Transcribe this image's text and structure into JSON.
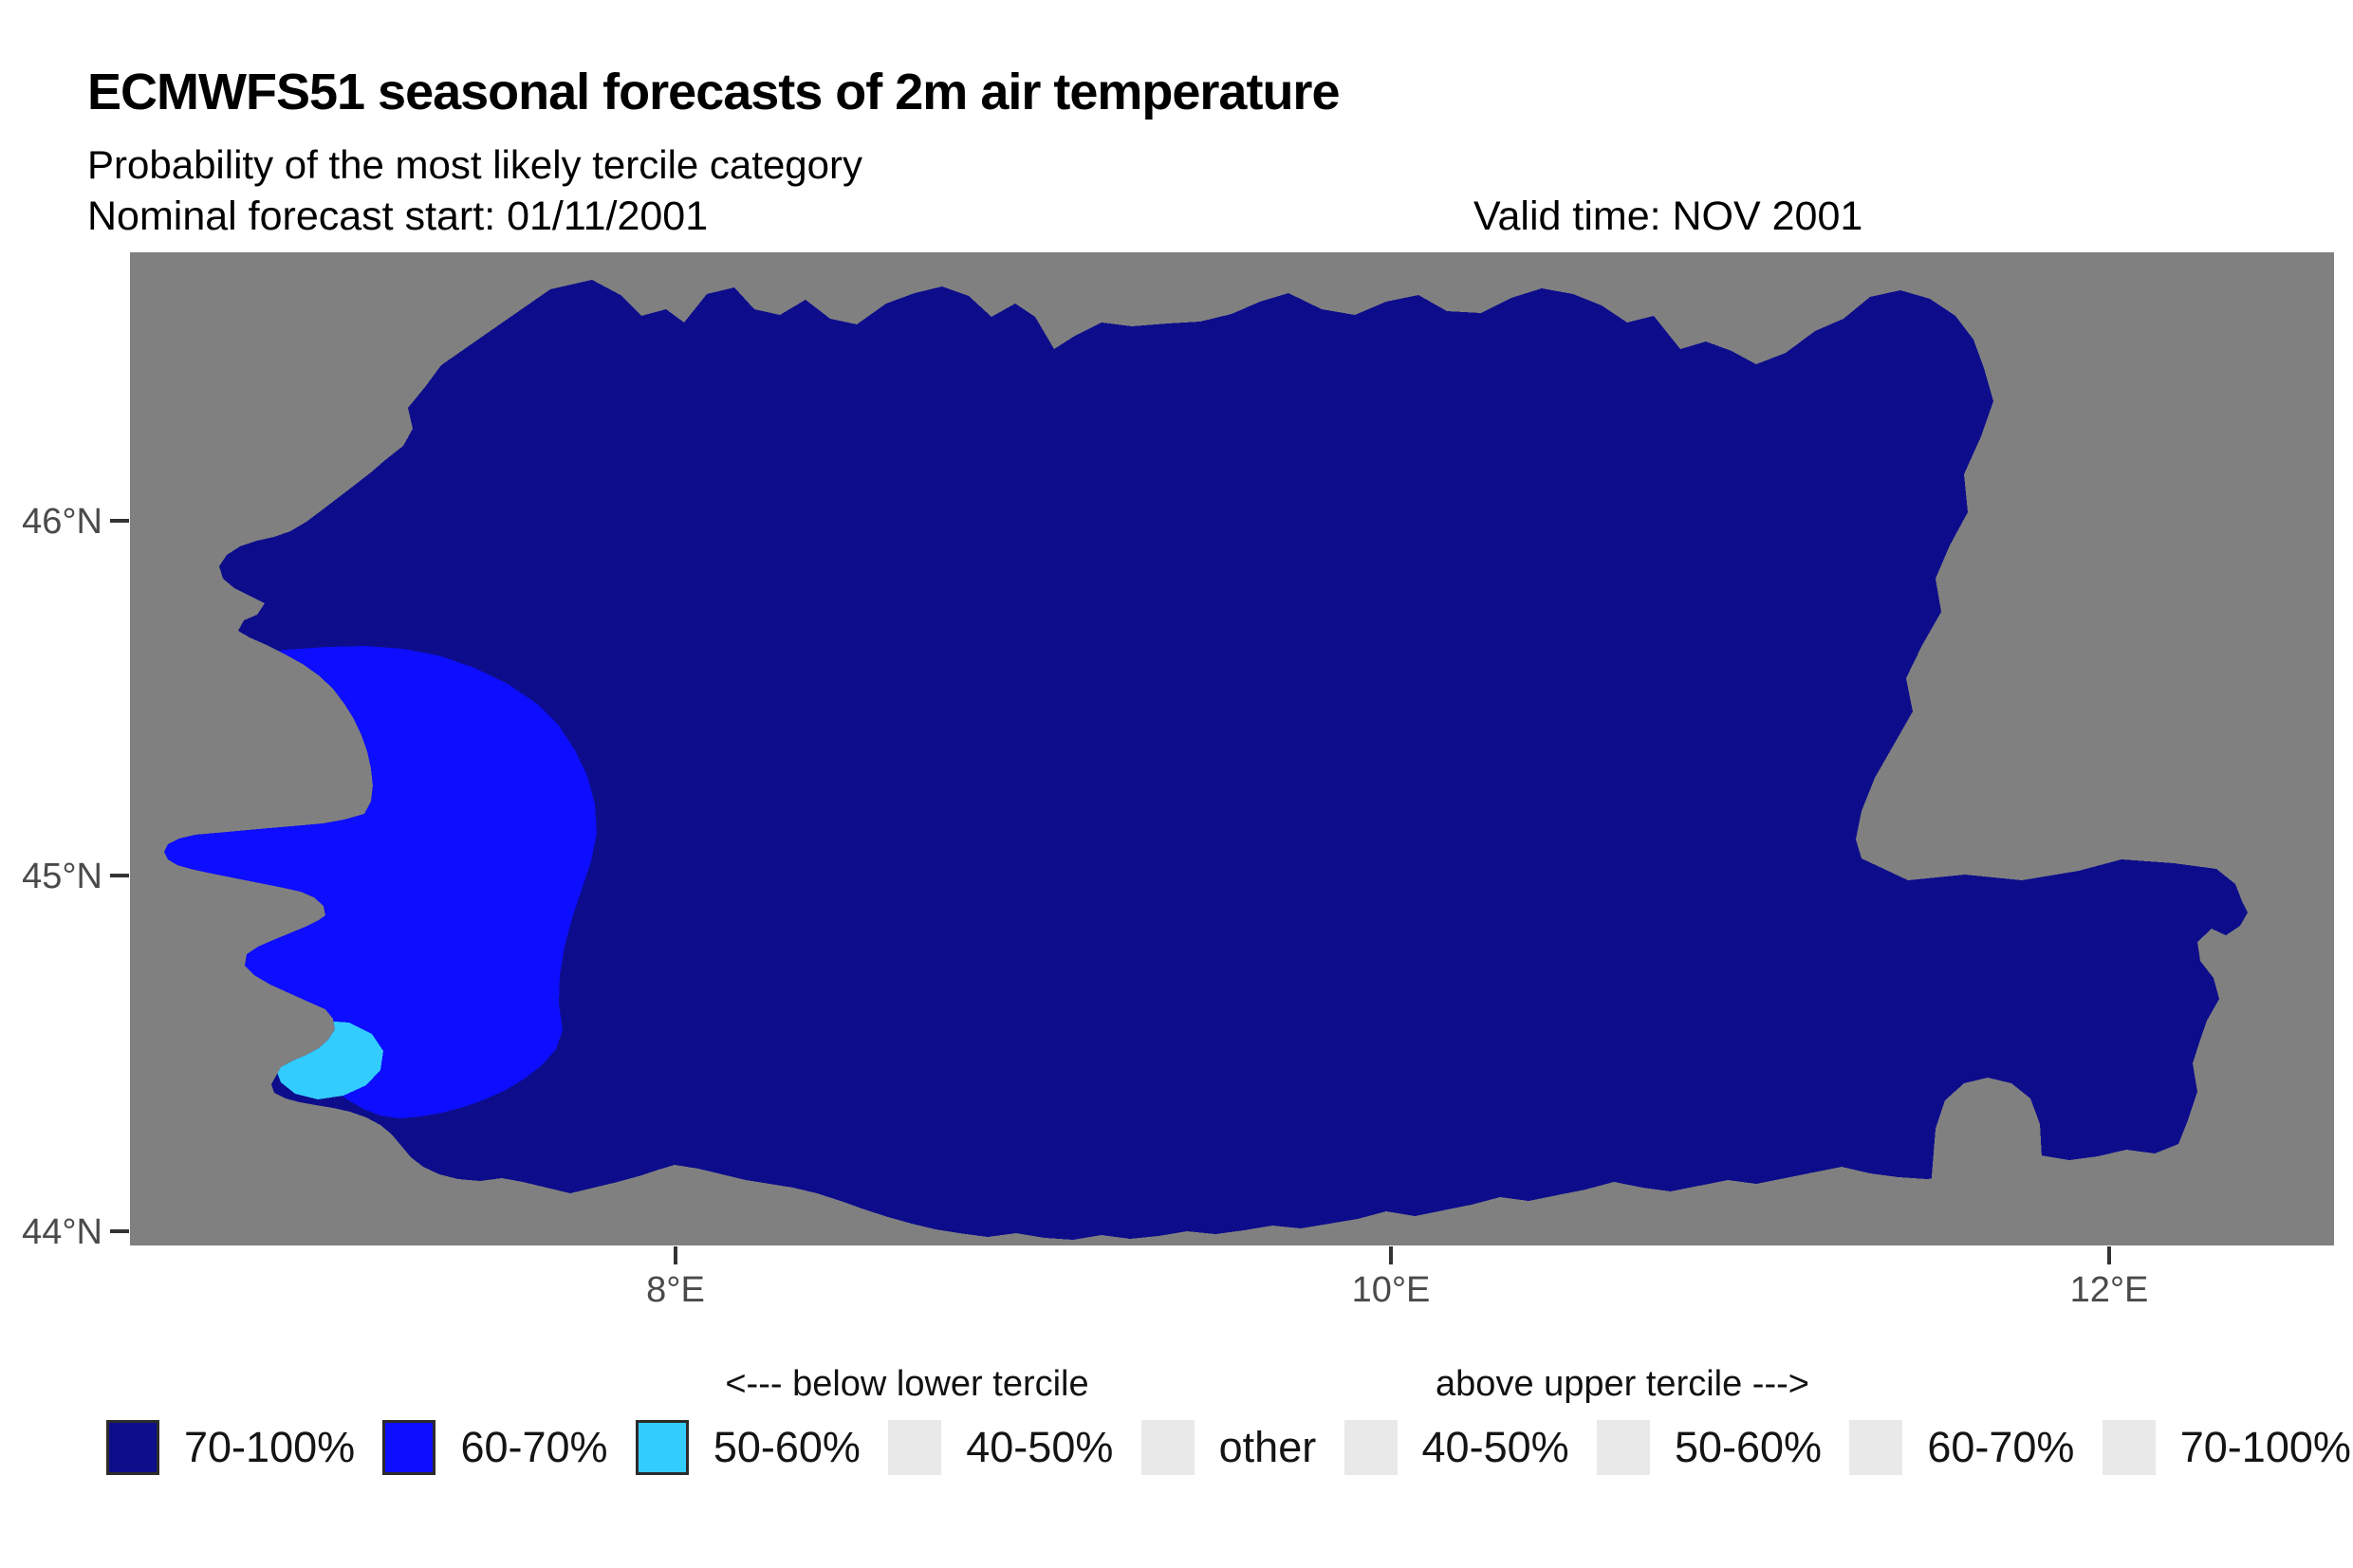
{
  "header": {
    "title": "ECMWFS51 seasonal forecasts of 2m air temperature",
    "subtitle": "Probability of the most likely tercile category",
    "forecast_start": "Nominal forecast start: 01/11/2001",
    "valid_time": "Valid time: NOV 2001"
  },
  "map": {
    "colors": {
      "background": "#808080",
      "navy": "#0D0D8C",
      "blue": "#0D0DFF",
      "cyan": "#33CCFF"
    },
    "x_axis": {
      "ticks": [
        "8°E",
        "10°E",
        "12°E"
      ]
    },
    "y_axis": {
      "ticks": [
        "46°N",
        "45°N",
        "44°N"
      ]
    },
    "regions": [
      {
        "category": "below lower tercile",
        "probability": "70-100%",
        "color": "#0D0D8C",
        "extent": "most of the basin"
      },
      {
        "category": "below lower tercile",
        "probability": "60-70%",
        "color": "#0D0DFF",
        "extent": "western part of the basin"
      },
      {
        "category": "below lower tercile",
        "probability": "50-60%",
        "color": "#33CCFF",
        "extent": "small south-western spot"
      }
    ]
  },
  "legend": {
    "below_header": "<--- below lower tercile",
    "above_header": "above upper tercile --->",
    "items": [
      {
        "label": "70-100%",
        "color": "#0D0D8C",
        "bordered": true
      },
      {
        "label": "60-70%",
        "color": "#0D0DFF",
        "bordered": true
      },
      {
        "label": "50-60%",
        "color": "#33CCFF",
        "bordered": true
      },
      {
        "label": "40-50%",
        "color": "#E9E9E9",
        "bordered": false
      },
      {
        "label": "other",
        "color": "#E9E9E9",
        "bordered": false
      },
      {
        "label": "40-50%",
        "color": "#E9E9E9",
        "bordered": false
      },
      {
        "label": "50-60%",
        "color": "#E9E9E9",
        "bordered": false
      },
      {
        "label": "60-70%",
        "color": "#E9E9E9",
        "bordered": false
      },
      {
        "label": "70-100%",
        "color": "#E9E9E9",
        "bordered": false
      }
    ]
  }
}
